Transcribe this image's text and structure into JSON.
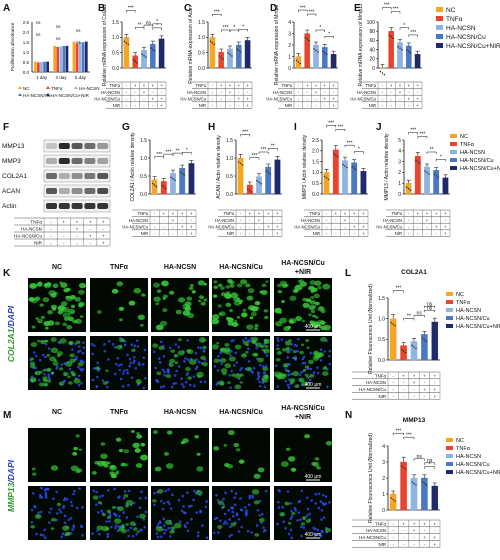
{
  "panel_letters": [
    "A",
    "B",
    "C",
    "D",
    "E",
    "F",
    "G",
    "H",
    "I",
    "J",
    "K",
    "L",
    "M",
    "N"
  ],
  "legend": {
    "labels": [
      "NC",
      "TNFα",
      "HA-NCSN",
      "HA-NCSN/Cu",
      "HA-NCSN/Cu+NIR"
    ],
    "colors": [
      "#f5a623",
      "#e8442e",
      "#8fb4e2",
      "#4a78c2",
      "#1f2a6e"
    ]
  },
  "treatment_rows": [
    "TNFα",
    "HA-NCSN",
    "HA-NCSN/Cu",
    "NIR"
  ],
  "treatment_matrix": [
    [
      "-",
      "+",
      "+",
      "+",
      "+"
    ],
    [
      "-",
      "-",
      "+",
      "-",
      "-"
    ],
    [
      "-",
      "-",
      "-",
      "+",
      "+"
    ],
    [
      "-",
      "-",
      "-",
      "-",
      "+"
    ]
  ],
  "blot": {
    "rows": [
      "MMP13",
      "MMP3",
      "COL2A1",
      "ACAN",
      "Actin"
    ]
  },
  "micro": {
    "group_labels": [
      "NC",
      "TNFα",
      "HA-NCSN",
      "HA-NCSN/Cu",
      "HA-NCSN/Cu\n+NIR"
    ],
    "k_stain_a": "COL2A1",
    "k_stain_b": "/DAPI",
    "m_stain_a": "MMP13",
    "m_stain_b": "/DAPI",
    "scale_bar": "400 μm"
  },
  "chart_data": [
    {
      "panel": "A",
      "type": "bar",
      "ylabel": "Proliferation absorbance",
      "categories": [
        "1 day",
        "3 day",
        "5 day"
      ],
      "ylim": [
        0,
        2.5
      ],
      "yticks": [
        0,
        0.5,
        1.0,
        1.5,
        2.0,
        2.5
      ],
      "series": [
        {
          "name": "NC",
          "values": [
            0.52,
            1.3,
            1.52
          ]
        },
        {
          "name": "TNFα",
          "values": [
            0.48,
            1.25,
            1.42
          ]
        },
        {
          "name": "HA-NCSN",
          "values": [
            0.5,
            1.28,
            1.5
          ]
        },
        {
          "name": "HA-NCSN/Cu",
          "values": [
            0.51,
            1.3,
            1.49
          ]
        },
        {
          "name": "HA-NCSN/Cu+NIR",
          "values": [
            0.52,
            1.31,
            1.52
          ]
        }
      ],
      "legend_labels": [
        "NC",
        "TNFα",
        "HA-NCSN",
        "HA-NCSN/Cu",
        "HA-NCSN/Cu+NIR"
      ],
      "annotations": [
        "ns",
        "ns",
        "ns",
        "ns",
        "ns",
        "ns"
      ]
    },
    {
      "panel": "B",
      "type": "bar",
      "ylabel": "Relative mRNA expression of Col2a1",
      "ylim": [
        0,
        1.5
      ],
      "yticks": [
        0.0,
        0.5,
        1.0,
        1.5
      ],
      "values": [
        1.0,
        0.4,
        0.58,
        0.78,
        0.95
      ],
      "annotations": [
        "***",
        "**",
        "ns",
        "*",
        "*"
      ]
    },
    {
      "panel": "C",
      "type": "bar",
      "ylabel": "Relative mRNA expression of Acan",
      "ylim": [
        0,
        1.5
      ],
      "yticks": [
        0.0,
        0.5,
        1.0,
        1.5
      ],
      "values": [
        1.0,
        0.52,
        0.62,
        0.75,
        0.9
      ],
      "annotations": [
        "***",
        "***",
        "*",
        "*"
      ]
    },
    {
      "panel": "D",
      "type": "bar",
      "ylabel": "Relative mRNA expression of Mmp3",
      "ylim": [
        0,
        4
      ],
      "yticks": [
        0,
        1,
        2,
        3,
        4
      ],
      "values": [
        1.0,
        3.0,
        2.0,
        1.8,
        1.2
      ],
      "annotations": [
        "***",
        "***",
        "*",
        "*"
      ]
    },
    {
      "panel": "E",
      "type": "bar",
      "ylabel": "Relative mRNA expression of Mmp13",
      "ylim": [
        0,
        100
      ],
      "yticks": [
        0,
        20,
        40,
        60,
        80,
        100
      ],
      "values": [
        1,
        80,
        55,
        48,
        30
      ],
      "annotations": [
        "***",
        "***",
        "*",
        "***"
      ]
    },
    {
      "panel": "G",
      "type": "bar",
      "ylabel": "COL2A1 / Actin relative density",
      "ylim": [
        0,
        1.5
      ],
      "yticks": [
        0.0,
        0.5,
        1.0,
        1.5
      ],
      "values": [
        0.4,
        0.35,
        0.58,
        0.72,
        0.85
      ],
      "annotations": [
        "***",
        "***",
        "**",
        "*"
      ]
    },
    {
      "panel": "H",
      "type": "bar",
      "ylabel": "ACAN / Actin relative density",
      "ylim": [
        0,
        1.5
      ],
      "yticks": [
        0.0,
        0.5,
        1.0,
        1.5
      ],
      "values": [
        1.0,
        0.25,
        0.48,
        0.75,
        0.95
      ],
      "annotations": [
        "***",
        "***",
        "***",
        "**"
      ]
    },
    {
      "panel": "I",
      "type": "bar",
      "ylabel": "MMP3 / Actin relative density",
      "ylim": [
        0,
        2.5
      ],
      "yticks": [
        0.0,
        0.5,
        1.0,
        1.5,
        2.0,
        2.5
      ],
      "values": [
        1.0,
        2.05,
        1.55,
        1.45,
        1.05
      ],
      "annotations": [
        "***",
        "***",
        "***",
        "*"
      ]
    },
    {
      "panel": "J",
      "type": "bar",
      "ylabel": "MMP13 / Actin relative density",
      "ylim": [
        0,
        5
      ],
      "yticks": [
        0,
        1,
        2,
        3,
        4,
        5
      ],
      "values": [
        1.0,
        3.5,
        2.5,
        2.2,
        1.5
      ],
      "annotations": [
        "***",
        "***",
        "**",
        "*"
      ]
    },
    {
      "panel": "L",
      "type": "bar",
      "title": "COL2A1",
      "ylabel": "Relative Flourescence Unit (Normalized)",
      "ylim": [
        0,
        1.5
      ],
      "yticks": [
        0.0,
        0.5,
        1.0,
        1.5
      ],
      "values": [
        1.0,
        0.35,
        0.45,
        0.62,
        0.92
      ],
      "annotations": [
        "***",
        "**",
        "ns",
        "ns",
        "ns"
      ]
    },
    {
      "panel": "N",
      "type": "bar",
      "title": "MMP13",
      "ylabel": "Relative Flourescence Unit (Normalized)",
      "ylim": [
        0,
        4
      ],
      "yticks": [
        0,
        1,
        2,
        3,
        4
      ],
      "values": [
        1.0,
        3.0,
        2.0,
        2.0,
        1.5
      ],
      "annotations": [
        "***",
        "***",
        "ns",
        "ns",
        "*"
      ]
    }
  ]
}
